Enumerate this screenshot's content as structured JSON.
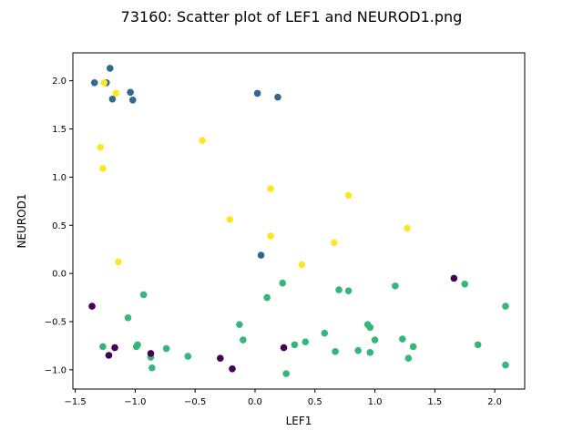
{
  "chart_data": {
    "type": "scatter",
    "title": "73160: Scatter plot of LEF1 and NEUROD1.png",
    "xlabel": "LEF1",
    "ylabel": "NEUROD1",
    "xlim": [
      -1.52,
      2.25
    ],
    "ylim": [
      -1.2,
      2.29
    ],
    "grid": false,
    "x_ticks": [
      -1.5,
      -1.0,
      -0.5,
      0.0,
      0.5,
      1.0,
      1.5,
      2.0
    ],
    "x_tick_labels": [
      "−1.5",
      "−1.0",
      "−0.5",
      "0.0",
      "0.5",
      "1.0",
      "1.5",
      "2.0"
    ],
    "y_ticks": [
      -1.0,
      -0.5,
      0.0,
      0.5,
      1.0,
      1.5,
      2.0
    ],
    "y_tick_labels": [
      "−1.0",
      "−0.5",
      "0.0",
      "0.5",
      "1.0",
      "1.5",
      "2.0"
    ],
    "series": [
      {
        "color": "#31688e",
        "x": [
          -1.34,
          -1.24,
          -1.21,
          -1.19,
          -1.04,
          -1.02,
          0.02,
          0.19,
          0.05
        ],
        "y": [
          1.98,
          1.98,
          2.13,
          1.81,
          1.88,
          1.8,
          1.87,
          1.83,
          0.19
        ]
      },
      {
        "color": "#fde725",
        "x": [
          -1.26,
          -1.16,
          -1.29,
          -1.27,
          -0.44,
          -1.14,
          0.13,
          0.78,
          -0.21,
          0.13,
          1.27,
          0.66,
          0.39
        ],
        "y": [
          1.98,
          1.87,
          1.31,
          1.09,
          1.38,
          0.12,
          0.88,
          0.81,
          0.56,
          0.39,
          0.47,
          0.32,
          0.09
        ]
      },
      {
        "color": "#35b779",
        "x": [
          -0.93,
          -1.06,
          -1.27,
          -0.98,
          -0.99,
          -0.87,
          -0.86,
          -0.74,
          -0.56,
          -0.13,
          -0.1,
          0.1,
          0.23,
          0.26,
          0.33,
          0.42,
          0.58,
          0.67,
          0.7,
          0.78,
          0.86,
          0.94,
          0.96,
          0.96,
          1.0,
          1.17,
          1.23,
          1.28,
          1.32,
          1.75,
          1.86,
          2.09,
          2.09
        ],
        "y": [
          -0.22,
          -0.46,
          -0.76,
          -0.74,
          -0.76,
          -0.87,
          -0.98,
          -0.78,
          -0.86,
          -0.53,
          -0.69,
          -0.25,
          -0.1,
          -1.04,
          -0.74,
          -0.71,
          -0.62,
          -0.81,
          -0.17,
          -0.18,
          -0.8,
          -0.53,
          -0.56,
          -0.82,
          -0.69,
          -0.13,
          -0.68,
          -0.88,
          -0.76,
          -0.11,
          -0.74,
          -0.34,
          -0.95
        ]
      },
      {
        "color": "#440154",
        "x": [
          -1.36,
          -1.22,
          -1.17,
          -0.87,
          -0.29,
          -0.19,
          0.24,
          1.66
        ],
        "y": [
          -0.34,
          -0.85,
          -0.77,
          -0.83,
          -0.88,
          -0.99,
          -0.77,
          -0.05
        ]
      }
    ]
  }
}
